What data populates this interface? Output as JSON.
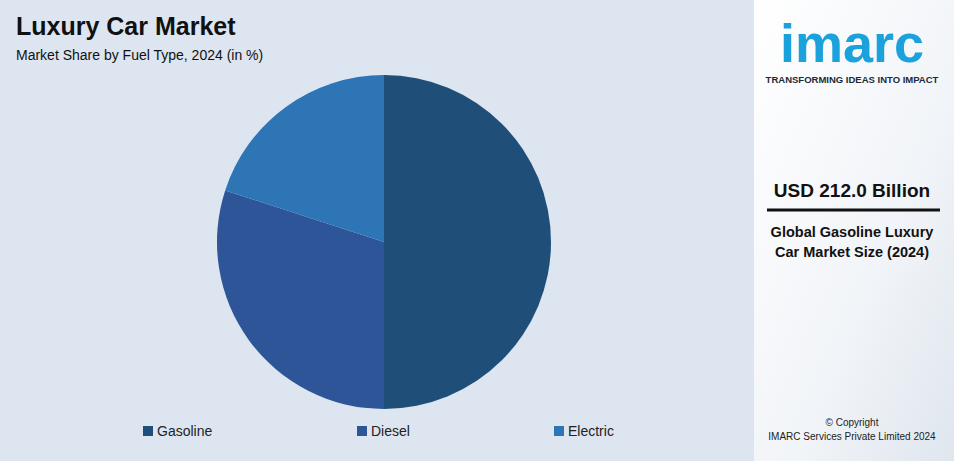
{
  "chart_data": {
    "type": "pie",
    "title": "Luxury Car Market",
    "subtitle": "Market Share by Fuel Type, 2024 (in %)",
    "categories": [
      "Gasoline",
      "Diesel",
      "Electric"
    ],
    "values": [
      50,
      30,
      20
    ],
    "colors": [
      "#1f4e79",
      "#2e5597",
      "#2e75b6"
    ],
    "legend": "bottom",
    "data_labels": false,
    "annotations": [
      "imarc",
      "TRANSFORMING IDEAS INTO IMPACT",
      "USD 212.0 Billion",
      "Global Gasoline Luxury Car Market Size (2024)",
      "© Copyright",
      "IMARC Services Private Limited 2024"
    ]
  }
}
